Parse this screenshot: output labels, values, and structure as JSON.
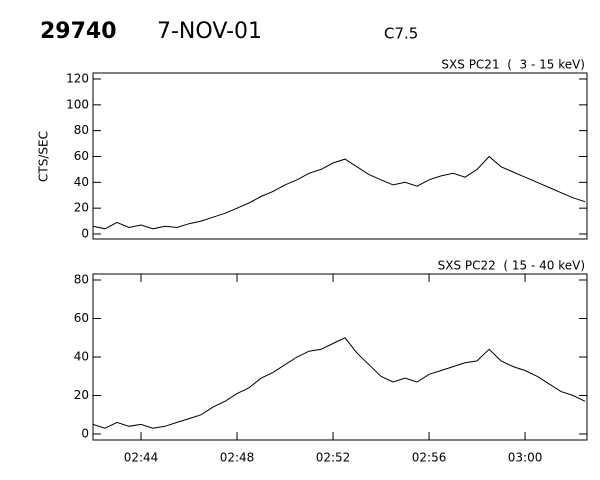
{
  "header": {
    "id": "29740",
    "date": "7-NOV-01",
    "class": "C7.5"
  },
  "chart_data": [
    {
      "type": "line",
      "title": "SXS PC21  (  3 - 15 keV)",
      "ylabel": "CTS/SEC",
      "color": "#000000",
      "x": [
        162,
        162.5,
        163,
        163.5,
        164,
        164.5,
        165,
        165.5,
        166,
        166.5,
        167,
        167.5,
        168,
        168.5,
        169,
        169.5,
        170,
        170.5,
        171,
        171.5,
        172,
        172.5,
        173,
        173.5,
        174,
        174.5,
        175,
        175.5,
        176,
        176.5,
        177,
        177.5,
        178,
        178.5,
        179,
        179.5,
        180,
        180.5,
        181,
        181.5,
        182,
        182.5
      ],
      "values": [
        6,
        4,
        9,
        5,
        7,
        4,
        6,
        5,
        8,
        10,
        13,
        16,
        20,
        24,
        29,
        33,
        38,
        42,
        47,
        50,
        55,
        58,
        52,
        46,
        42,
        38,
        40,
        37,
        42,
        45,
        47,
        44,
        50,
        60,
        52,
        48,
        44,
        40,
        36,
        32,
        28,
        25
      ],
      "xlim": [
        162,
        182.58
      ],
      "ylim": [
        0,
        120
      ],
      "yticks": [
        0,
        20,
        40,
        60,
        80,
        100,
        120
      ]
    },
    {
      "type": "line",
      "title": "SXS PC22  ( 15 - 40 keV)",
      "color": "#000000",
      "x": [
        162,
        162.5,
        163,
        163.5,
        164,
        164.5,
        165,
        165.5,
        166,
        166.5,
        167,
        167.5,
        168,
        168.5,
        169,
        169.5,
        170,
        170.5,
        171,
        171.5,
        172,
        172.5,
        173,
        173.5,
        174,
        174.5,
        175,
        175.5,
        176,
        176.5,
        177,
        177.5,
        178,
        178.5,
        179,
        179.5,
        180,
        180.5,
        181,
        181.5,
        182,
        182.5
      ],
      "values": [
        5,
        3,
        6,
        4,
        5,
        3,
        4,
        6,
        8,
        10,
        14,
        17,
        21,
        24,
        29,
        32,
        36,
        40,
        43,
        44,
        47,
        50,
        42,
        36,
        30,
        27,
        29,
        27,
        31,
        33,
        35,
        37,
        38,
        44,
        38,
        35,
        33,
        30,
        26,
        22,
        20,
        17
      ],
      "xlim": [
        162,
        182.58
      ],
      "ylim": [
        0,
        80
      ],
      "yticks": [
        0,
        20,
        40,
        60,
        80
      ],
      "xticks": [
        {
          "value": 164,
          "label": "02:44"
        },
        {
          "value": 168,
          "label": "02:48"
        },
        {
          "value": 172,
          "label": "02:52"
        },
        {
          "value": 176,
          "label": "02:56"
        },
        {
          "value": 180,
          "label": "03:00"
        }
      ]
    }
  ]
}
